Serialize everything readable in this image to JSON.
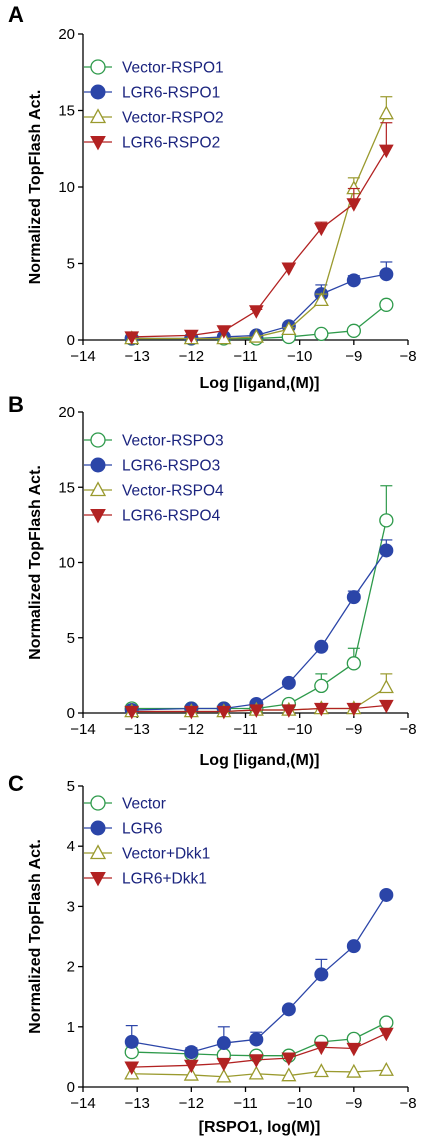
{
  "chart_data": [
    {
      "panel": "A",
      "type": "line",
      "xlabel": "Log [ligand,(M)]",
      "ylabel": "Normalized TopFlash Act.",
      "xlim": [
        -14,
        -8
      ],
      "ylim": [
        0,
        20
      ],
      "xticks": [
        -14,
        -13,
        -12,
        -11,
        -10,
        -9,
        -8
      ],
      "yticks": [
        0,
        5,
        10,
        15,
        20
      ],
      "x": [
        -13.1,
        -12.0,
        -11.4,
        -10.8,
        -10.2,
        -9.6,
        -9.0,
        -8.4
      ],
      "legend": "top-left",
      "series": [
        {
          "name": "Vector-RSPO1",
          "color": "#2e9a4b",
          "marker": "circle-open",
          "values": [
            0.1,
            0.1,
            0.1,
            0.1,
            0.2,
            0.4,
            0.6,
            2.3
          ],
          "errors": [
            0,
            0,
            0,
            0,
            0.1,
            0.1,
            0.1,
            0.2
          ]
        },
        {
          "name": "LGR6-RSPO1",
          "color": "#2b45a8",
          "marker": "circle-filled",
          "values": [
            0.1,
            0.1,
            0.2,
            0.3,
            0.9,
            3.0,
            3.9,
            4.3
          ],
          "errors": [
            0,
            0,
            0,
            0,
            0.2,
            0.6,
            0.3,
            0.8
          ]
        },
        {
          "name": "Vector-RSPO2",
          "color": "#9a9a2e",
          "marker": "triangle-open",
          "values": [
            0.1,
            0.1,
            0.1,
            0.2,
            0.7,
            2.6,
            9.9,
            14.8
          ],
          "errors": [
            0,
            0,
            0,
            0,
            0.1,
            0.4,
            0.7,
            1.1
          ]
        },
        {
          "name": "LGR6-RSPO2",
          "color": "#b22222",
          "marker": "triangle-down-filled",
          "values": [
            0.2,
            0.3,
            0.6,
            1.9,
            4.7,
            7.3,
            8.9,
            12.4
          ],
          "errors": [
            0,
            0,
            0,
            0.1,
            0.3,
            0.4,
            1.0,
            1.8
          ]
        }
      ]
    },
    {
      "panel": "B",
      "type": "line",
      "xlabel": "Log [ligand,(M)]",
      "ylabel": "Normalized TopFlash Act.",
      "xlim": [
        -14,
        -8
      ],
      "ylim": [
        0,
        20
      ],
      "xticks": [
        -14,
        -13,
        -12,
        -11,
        -10,
        -9,
        -8
      ],
      "yticks": [
        0,
        5,
        10,
        15,
        20
      ],
      "x": [
        -13.1,
        -12.0,
        -11.4,
        -10.8,
        -10.2,
        -9.6,
        -9.0,
        -8.4
      ],
      "legend": "top-left",
      "series": [
        {
          "name": "Vector-RSPO3",
          "color": "#2e9a4b",
          "marker": "circle-open",
          "values": [
            0.3,
            0.3,
            0.3,
            0.3,
            0.6,
            1.8,
            3.3,
            12.8
          ],
          "errors": [
            0,
            0,
            0,
            0,
            0.2,
            0.8,
            1.0,
            2.3
          ]
        },
        {
          "name": "LGR6-RSPO3",
          "color": "#2b45a8",
          "marker": "circle-filled",
          "values": [
            0.2,
            0.3,
            0.3,
            0.6,
            2.0,
            4.4,
            7.7,
            10.8
          ],
          "errors": [
            0,
            0,
            0,
            0,
            0.1,
            0.2,
            0.4,
            0.7
          ]
        },
        {
          "name": "Vector-RSPO4",
          "color": "#9a9a2e",
          "marker": "triangle-open",
          "values": [
            0.1,
            0.1,
            0.1,
            0.2,
            0.2,
            0.3,
            0.3,
            1.7
          ],
          "errors": [
            0,
            0,
            0,
            0,
            0,
            0,
            0,
            0.9
          ]
        },
        {
          "name": "LGR6-RSPO4",
          "color": "#b22222",
          "marker": "triangle-down-filled",
          "values": [
            0.1,
            0.1,
            0.1,
            0.2,
            0.2,
            0.3,
            0.3,
            0.5
          ],
          "errors": [
            0,
            0,
            0,
            0,
            0,
            0,
            0,
            0
          ]
        }
      ]
    },
    {
      "panel": "C",
      "type": "line",
      "xlabel": "[RSPO1, log(M)]",
      "ylabel": "Normalized TopFlash Act.",
      "xlim": [
        -14,
        -8
      ],
      "ylim": [
        0,
        5
      ],
      "xticks": [
        -14,
        -13,
        -12,
        -11,
        -10,
        -9,
        -8
      ],
      "yticks": [
        0,
        1,
        2,
        3,
        4,
        5
      ],
      "x": [
        -13.1,
        -12.0,
        -11.4,
        -10.8,
        -10.2,
        -9.6,
        -9.0,
        -8.4
      ],
      "legend": "top-left",
      "series": [
        {
          "name": "Vector",
          "color": "#2e9a4b",
          "marker": "circle-open",
          "values": [
            0.58,
            0.55,
            0.53,
            0.52,
            0.52,
            0.75,
            0.8,
            1.07
          ],
          "errors": [
            0.1,
            0.05,
            0.05,
            0.05,
            0.05,
            0.05,
            0.05,
            0.05
          ]
        },
        {
          "name": "LGR6",
          "color": "#2b45a8",
          "marker": "circle-filled",
          "values": [
            0.75,
            0.58,
            0.73,
            0.79,
            1.29,
            1.87,
            2.34,
            3.19
          ],
          "errors": [
            0.27,
            0.07,
            0.27,
            0.12,
            0.05,
            0.25,
            0.05,
            0.05
          ]
        },
        {
          "name": "Vector+Dkk1",
          "color": "#9a9a2e",
          "marker": "triangle-open",
          "values": [
            0.22,
            0.2,
            0.17,
            0.22,
            0.19,
            0.26,
            0.25,
            0.28
          ],
          "errors": [
            0,
            0,
            0,
            0,
            0,
            0,
            0,
            0
          ]
        },
        {
          "name": "LGR6+Dkk1",
          "color": "#b22222",
          "marker": "triangle-down-filled",
          "values": [
            0.33,
            0.36,
            0.39,
            0.45,
            0.48,
            0.66,
            0.64,
            0.89
          ],
          "errors": [
            0,
            0,
            0,
            0,
            0,
            0,
            0,
            0.06
          ]
        }
      ]
    }
  ]
}
